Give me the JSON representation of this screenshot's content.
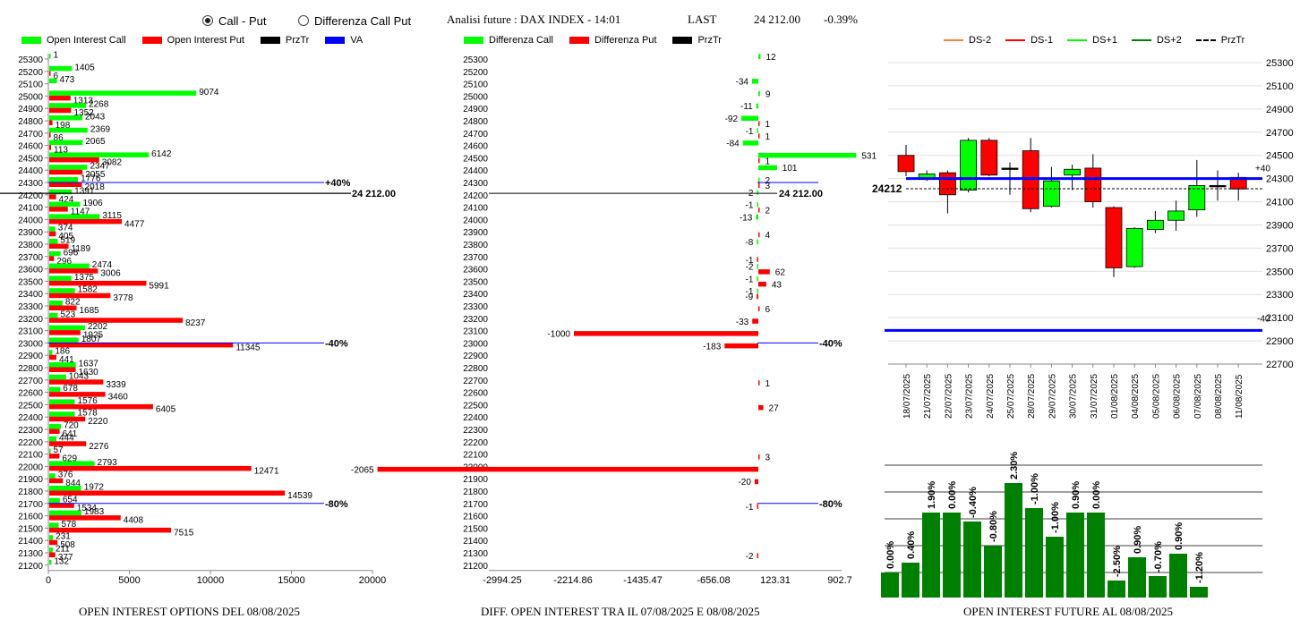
{
  "header": {
    "radio_call_put": "Call - Put",
    "radio_diff": "Differenza Call Put",
    "selected": "call_put",
    "title": "Analisi future : DAX INDEX - 14:01",
    "last_label": "LAST",
    "last_value": "24 212.00",
    "last_change": "-0.39%"
  },
  "footers": {
    "left": "OPEN INTEREST OPTIONS DEL 08/08/2025",
    "middle": "DIFF. OPEN INTEREST TRA IL 07/08/2025 E 08/08/2025",
    "right": "OPEN INTEREST FUTURE AL 08/08/2025"
  },
  "legends": {
    "left": [
      {
        "label": "Open Interest Call",
        "color": "#00ff00"
      },
      {
        "label": "Open Interest Put",
        "color": "#ff0000"
      },
      {
        "label": "PrzTr",
        "color": "#000000"
      },
      {
        "label": "VA",
        "color": "#0000ff"
      }
    ],
    "middle": [
      {
        "label": "Differenza Call",
        "color": "#00ff00"
      },
      {
        "label": "Differenza Put",
        "color": "#ff0000"
      },
      {
        "label": "PrzTr",
        "color": "#000000"
      }
    ],
    "right": [
      {
        "label": "DS-2",
        "color": "#ff8040",
        "style": "line"
      },
      {
        "label": "DS-1",
        "color": "#ff0000",
        "style": "box"
      },
      {
        "label": "DS+1",
        "color": "#00ff00",
        "style": "box"
      },
      {
        "label": "DS+2",
        "color": "#008000",
        "style": "box"
      },
      {
        "label": "PrzTr",
        "color": "#000000",
        "style": "dash"
      }
    ]
  },
  "chart_data": [
    {
      "type": "bar",
      "orientation": "horizontal",
      "strikes": [
        25300,
        25200,
        25100,
        25000,
        24900,
        24800,
        24700,
        24600,
        24500,
        24400,
        24300,
        24200,
        24100,
        24000,
        23900,
        23800,
        23700,
        23600,
        23500,
        23400,
        23300,
        23200,
        23100,
        23000,
        22900,
        22800,
        22700,
        22600,
        22500,
        22400,
        22300,
        22200,
        22100,
        22000,
        21900,
        21800,
        21700,
        21600,
        21500,
        21400,
        21300,
        21200
      ],
      "series": [
        {
          "name": "Open Interest Call",
          "color": "#00ff00",
          "values": [
            1,
            1405,
            473,
            9074,
            2268,
            2043,
            2369,
            2065,
            6142,
            2347,
            1776,
            1391,
            1906,
            3115,
            374,
            519,
            696,
            2474,
            1375,
            1582,
            822,
            523,
            2202,
            1807,
            186,
            1637,
            1043,
            678,
            1576,
            1578,
            720,
            444,
            57,
            2793,
            376,
            1972,
            654,
            1983,
            578,
            231,
            211,
            132
          ]
        },
        {
          "name": "Open Interest Put",
          "color": "#ff0000",
          "values": [
            0,
            6,
            0,
            1313,
            1352,
            198,
            86,
            113,
            3082,
            2055,
            2018,
            424,
            1147,
            4477,
            405,
            1189,
            296,
            3006,
            5991,
            3778,
            1685,
            8237,
            1925,
            11345,
            441,
            1630,
            3339,
            3460,
            6405,
            2220,
            641,
            2276,
            629,
            12471,
            844,
            14539,
            1534,
            4408,
            7515,
            508,
            377,
            0
          ]
        }
      ],
      "przTr": "24 212.00",
      "va_markers": [
        {
          "strike": 24300,
          "label": "+40%"
        },
        {
          "strike": 23000,
          "label": "-40%"
        },
        {
          "strike": 21700,
          "label": "-80%"
        }
      ],
      "x_ticks": [
        0,
        5000,
        10000,
        15000,
        20000
      ],
      "xlim": [
        0,
        20000
      ]
    },
    {
      "type": "bar",
      "orientation": "horizontal",
      "diff_call": {
        "25300": 12,
        "25100": -34,
        "25000": 9,
        "24900": -11,
        "24800": -92,
        "24700": -1,
        "24600": -84,
        "24500": 531,
        "24400": 101,
        "24300": 2,
        "24200": -2,
        "24100": -1,
        "24000": -13,
        "23800": -8,
        "23600": -2,
        "23500": -1,
        "23400": -1
      },
      "diff_put": {
        "24800": 1,
        "24700": 1,
        "24500": 1,
        "24300": 3,
        "24100": 2,
        "23900": 4,
        "23700": -1,
        "23600": 62,
        "23500": 43,
        "23400": -9,
        "23300": 6,
        "23200": -33,
        "23100": -1000,
        "23000": -183,
        "22700": 1,
        "22500": 27,
        "22100": 3,
        "22000": -2065,
        "21900": -20,
        "21700": -1,
        "21300": -2
      },
      "przTr": "24 212.00",
      "va_markers": [
        {
          "strike": 23000,
          "label": "-40%"
        },
        {
          "strike": 21700,
          "label": "-80%"
        }
      ],
      "x_ticks": [
        "-2994.25",
        "-2214.86",
        "-1435.47",
        "-656.08",
        "123.31",
        "902.7"
      ],
      "xlim": [
        -2994.25,
        902.7
      ]
    },
    {
      "type": "candlestick",
      "dates": [
        "18/07/2025",
        "21/07/2025",
        "22/07/2025",
        "23/07/2025",
        "24/07/2025",
        "25/07/2025",
        "28/07/2025",
        "29/07/2025",
        "30/07/2025",
        "31/07/2025",
        "01/08/2025",
        "04/08/2025",
        "05/08/2025",
        "06/08/2025",
        "07/08/2025",
        "08/08/2025",
        "11/08/2025"
      ],
      "candles": [
        {
          "o": 24500,
          "c": 24360,
          "h": 24590,
          "l": 24320,
          "color": "#ff0000"
        },
        {
          "o": 24300,
          "c": 24340,
          "h": 24370,
          "l": 24280,
          "color": "#00ff00"
        },
        {
          "o": 24350,
          "c": 24160,
          "h": 24370,
          "l": 24000,
          "color": "#ff0000"
        },
        {
          "o": 24200,
          "c": 24630,
          "h": 24650,
          "l": 24180,
          "color": "#00ff00"
        },
        {
          "o": 24630,
          "c": 24330,
          "h": 24650,
          "l": 24320,
          "color": "#ff0000"
        },
        {
          "o": 24390,
          "c": 24390,
          "h": 24440,
          "l": 24160,
          "color": "#000000"
        },
        {
          "o": 24540,
          "c": 24040,
          "h": 24650,
          "l": 24010,
          "color": "#ff0000"
        },
        {
          "o": 24060,
          "c": 24280,
          "h": 24400,
          "l": 24050,
          "color": "#00ff00"
        },
        {
          "o": 24330,
          "c": 24380,
          "h": 24420,
          "l": 24200,
          "color": "#00ff00"
        },
        {
          "o": 24390,
          "c": 24100,
          "h": 24510,
          "l": 24050,
          "color": "#ff0000"
        },
        {
          "o": 24050,
          "c": 23530,
          "h": 24060,
          "l": 23450,
          "color": "#ff0000"
        },
        {
          "o": 23540,
          "c": 23870,
          "h": 23880,
          "l": 23530,
          "color": "#00ff00"
        },
        {
          "o": 23860,
          "c": 23940,
          "h": 24020,
          "l": 23830,
          "color": "#00ff00"
        },
        {
          "o": 23940,
          "c": 24020,
          "h": 24110,
          "l": 23850,
          "color": "#00ff00"
        },
        {
          "o": 24030,
          "c": 24240,
          "h": 24460,
          "l": 23970,
          "color": "#00ff00"
        },
        {
          "o": 24240,
          "c": 24240,
          "h": 24370,
          "l": 24110,
          "color": "#000000"
        },
        {
          "o": 24310,
          "c": 24210,
          "h": 24350,
          "l": 24110,
          "color": "#ff0000"
        }
      ],
      "przTr_label": "24212",
      "przTr": 24212,
      "va_upper": 24300,
      "va_lower": 22990,
      "va_upper_label": "+40",
      "va_lower_label": "-40",
      "y_ticks": [
        25300,
        25100,
        24900,
        24700,
        24500,
        24300,
        24100,
        23900,
        23700,
        23500,
        23300,
        23100,
        22900,
        22700
      ],
      "ylim": [
        22700,
        25300
      ]
    },
    {
      "type": "bar",
      "labels": [
        "0.00%",
        "0.40%",
        "1.90%",
        "0.00%",
        "-0.40%",
        "-0.80%",
        "2.30%",
        "-1.00%",
        "-1.00%",
        "0.90%",
        "0.00%",
        "-2.50%",
        "0.90%",
        "-0.70%",
        "0.90%",
        "-1.20%"
      ],
      "values": [
        28,
        39,
        95,
        95,
        85,
        58,
        128,
        100,
        68,
        95,
        95,
        19,
        45,
        24,
        49,
        12
      ],
      "color": "#008000"
    }
  ]
}
